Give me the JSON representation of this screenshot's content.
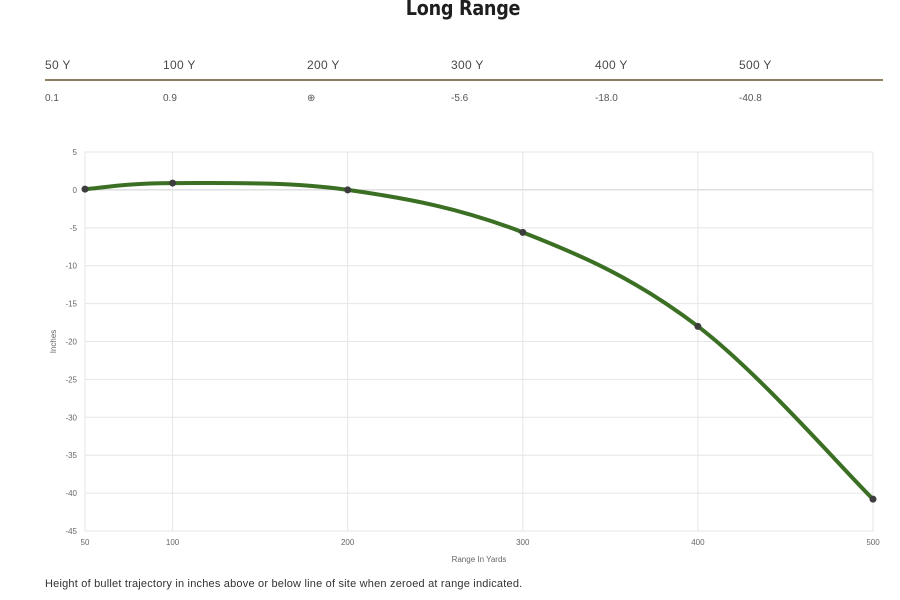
{
  "title": "Long Range",
  "range_table": {
    "headers": [
      "50 Y",
      "100 Y",
      "200 Y",
      "300 Y",
      "400 Y",
      "500 Y"
    ],
    "values": [
      "0.1",
      "0.9",
      "⊕",
      "-5.6",
      "-18.0",
      "-40.8"
    ]
  },
  "caption": "Height of bullet trajectory in inches above or below line of site when zeroed at range indicated.",
  "colors": {
    "line": "#3b7024",
    "point": "#3d3d3d",
    "table_rule": "#8d7d62",
    "grid": "#e6e6e6",
    "zero_line": "#cfcfcf"
  },
  "chart_data": {
    "type": "line",
    "xlabel": "Range In Yards",
    "ylabel": "Inches",
    "x": [
      50,
      100,
      200,
      300,
      400,
      500
    ],
    "series": [
      {
        "values": [
          0.1,
          0.9,
          0,
          -5.6,
          -18.0,
          -40.8
        ]
      }
    ],
    "xlim": [
      50,
      500
    ],
    "ylim": [
      -45,
      5
    ],
    "x_ticks": [
      "50",
      "100",
      "200",
      "300",
      "400",
      "500"
    ],
    "y_ticks": [
      "5",
      "0",
      "-5",
      "-10",
      "-15",
      "-20",
      "-25",
      "-30",
      "-35",
      "-40",
      "-45"
    ],
    "grid": true,
    "legend": "none"
  }
}
